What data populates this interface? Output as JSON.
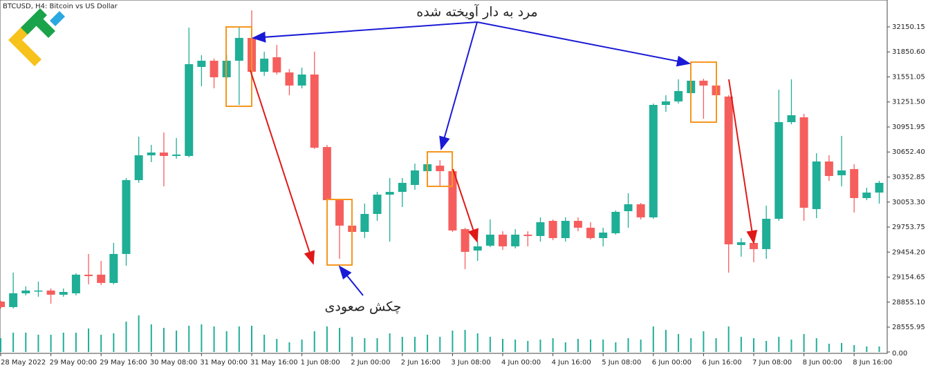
{
  "chart_data": {
    "type": "candlestick",
    "title": "BTCUSD, H4:  Bitcoin vs US Dollar",
    "annotations": [
      "مرد به دار آویخته شده",
      "چکش صعودی"
    ],
    "categories": [
      "28 May 2022",
      null,
      null,
      null,
      "29 May 00:00",
      null,
      null,
      null,
      "29 May 16:00",
      null,
      null,
      null,
      "30 May 08:00",
      null,
      null,
      null,
      "31 May 00:00",
      null,
      null,
      null,
      "31 May 16:00",
      null,
      null,
      null,
      "1 Jun 08:00",
      null,
      null,
      null,
      "2 Jun 00:00",
      null,
      null,
      null,
      "2 Jun 16:00",
      null,
      null,
      null,
      "3 Jun 08:00",
      null,
      null,
      null,
      "4 Jun 00:00",
      null,
      null,
      null,
      "4 Jun 16:00",
      null,
      null,
      null,
      "5 Jun 08:00",
      null,
      null,
      null,
      "6 Jun 00:00",
      null,
      null,
      null,
      "6 Jun 16:00",
      null,
      null,
      null,
      "7 Jun 08:00",
      null,
      null,
      null,
      "8 Jun 00:00",
      null,
      null,
      null,
      "8 Jun 16:00",
      null,
      null
    ],
    "open": [
      28862,
      28796,
      28961,
      28986,
      28994,
      28944,
      28961,
      29184,
      29184,
      29085,
      29432,
      30316,
      30613,
      30646,
      30605,
      30605,
      31671,
      31745,
      31547,
      31745,
      32018,
      31613,
      31787,
      31605,
      31448,
      31580,
      30712,
      30076,
      29771,
      29696,
      29911,
      30142,
      30175,
      30258,
      30423,
      30489,
      30423,
      29729,
      29473,
      29531,
      29663,
      29523,
      29663,
      29647,
      29828,
      29622,
      29828,
      29746,
      29622,
      29680,
      29944,
      30027,
      29870,
      31216,
      31258,
      31357,
      31506,
      31448,
      31316,
      29539,
      29564,
      29490,
      29853,
      31010,
      31068,
      29969,
      30539,
      30374,
      30448,
      30101,
      30167
    ],
    "high": [
      28870,
      29209,
      29044,
      29101,
      29019,
      29019,
      29200,
      29432,
      29349,
      29564,
      30341,
      30836,
      30737,
      30886,
      30820,
      32142,
      31811,
      31770,
      31811,
      32142,
      32348,
      31853,
      31935,
      31646,
      31663,
      31853,
      30737,
      30093,
      29828,
      30035,
      30175,
      30341,
      30341,
      30514,
      30622,
      30555,
      30489,
      29746,
      29580,
      29845,
      29704,
      29729,
      29704,
      29870,
      29845,
      29870,
      29870,
      29812,
      29746,
      29952,
      30159,
      30043,
      31233,
      31332,
      31522,
      31605,
      31530,
      31497,
      31332,
      29622,
      29663,
      30010,
      31398,
      31522,
      31109,
      30638,
      30613,
      30845,
      30506,
      30225,
      30308
    ],
    "low": [
      28779,
      28779,
      28936,
      28920,
      28837,
      28920,
      28936,
      29068,
      29060,
      29068,
      29291,
      30283,
      30531,
      30242,
      30572,
      30589,
      31440,
      31415,
      31522,
      31216,
      31588,
      31564,
      31580,
      31332,
      31415,
      30688,
      30035,
      29374,
      29663,
      29622,
      29828,
      29580,
      29994,
      30200,
      30407,
      30242,
      29696,
      29250,
      29349,
      29514,
      29481,
      29498,
      29523,
      29580,
      29597,
      29580,
      29704,
      29605,
      29523,
      29663,
      29746,
      29845,
      29853,
      31134,
      31233,
      31316,
      31051,
      31316,
      29209,
      29399,
      29333,
      29374,
      29828,
      30985,
      29828,
      29861,
      30308,
      30242,
      29928,
      30076,
      30035
    ],
    "close": [
      28796,
      28961,
      28994,
      28994,
      28944,
      28977,
      29184,
      29167,
      29085,
      29432,
      30316,
      30613,
      30646,
      30605,
      30622,
      31704,
      31745,
      31547,
      31745,
      32018,
      31613,
      31770,
      31605,
      31448,
      31580,
      30704,
      30076,
      29771,
      29696,
      29911,
      30142,
      30175,
      30283,
      30432,
      30506,
      30423,
      29713,
      29457,
      29523,
      29663,
      29523,
      29663,
      29647,
      29812,
      29622,
      29828,
      29746,
      29622,
      29688,
      29936,
      30027,
      29870,
      31216,
      31258,
      31382,
      31506,
      31448,
      31332,
      29547,
      29572,
      29490,
      29853,
      31010,
      31093,
      29985,
      30539,
      30365,
      30432,
      30101,
      30167,
      30283
    ],
    "volume": [
      20,
      28,
      28,
      25,
      25,
      28,
      28,
      34,
      25,
      27,
      44,
      53,
      40,
      35,
      31,
      38,
      40,
      37,
      30,
      37,
      38,
      25,
      19,
      14,
      18,
      30,
      37,
      35,
      22,
      20,
      20,
      27,
      22,
      22,
      25,
      22,
      31,
      32,
      27,
      22,
      19,
      18,
      16,
      18,
      20,
      14,
      19,
      18,
      18,
      14,
      20,
      18,
      37,
      32,
      26,
      20,
      30,
      20,
      37,
      22,
      20,
      16,
      22,
      18,
      26,
      20,
      12,
      13,
      10,
      8,
      8
    ],
    "up_color": "#1fae96",
    "down_color": "#f65e5e",
    "volume_color": "#1fae96",
    "ylim": [
      28242,
      32472
    ],
    "yticks": [
      32150.15,
      {
        "value": 31850.6,
        "label": "31850.60"
      },
      31551.05,
      {
        "value": 31251.5,
        "label": "31251.50"
      },
      30951.95,
      {
        "value": 30652.4,
        "label": "30652.40"
      },
      30352.85,
      {
        "value": 30053.3,
        "label": "30053.30"
      },
      29753.75,
      {
        "value": 29454.2,
        "label": "29454.20"
      },
      29154.65,
      {
        "value": 28855.1,
        "label": "28855.10"
      },
      28555.95
    ],
    "y2lim": [
      0,
      100
    ],
    "y2ticks": [
      {
        "value": 0,
        "label": "0.00"
      }
    ]
  }
}
